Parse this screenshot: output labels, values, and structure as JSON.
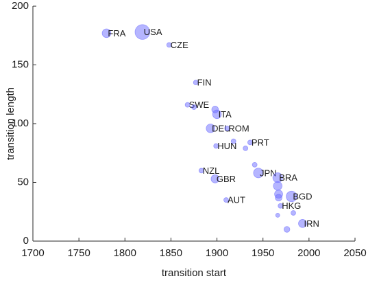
{
  "chart_data": {
    "type": "scatter",
    "xlabel": "transition start",
    "ylabel": "transition length",
    "xlim": [
      1700,
      2050
    ],
    "xticks": [
      1700,
      1750,
      1800,
      1850,
      1900,
      1950,
      2000,
      2050
    ],
    "ylim": [
      0,
      200
    ],
    "yticks": [
      0,
      50,
      100,
      150,
      200
    ],
    "color": "#6b6bff",
    "x": [
      1780,
      1819,
      1848,
      1877,
      1868,
      1875,
      1898,
      1900,
      1893,
      1911,
      1899,
      1936,
      1918,
      1931,
      1883,
      1898,
      1941,
      1945,
      1966,
      1966,
      1967,
      1967,
      1981,
      1969,
      1910,
      1993,
      1966,
      1976,
      1983
    ],
    "values": [
      177,
      178,
      167,
      135,
      116,
      114,
      112,
      108,
      96,
      96,
      81,
      84,
      85,
      79,
      60,
      53,
      65,
      58,
      54,
      47,
      40,
      37,
      38,
      30,
      35,
      15,
      22,
      10,
      24
    ],
    "sizes": [
      3,
      11,
      0.5,
      0.5,
      0.5,
      0.5,
      1.5,
      3,
      3,
      0.5,
      0.5,
      0.5,
      0.5,
      0.5,
      0.5,
      2.5,
      0.5,
      4,
      4,
      3,
      2.5,
      1.5,
      5,
      0.5,
      0.5,
      2.5,
      0.3,
      1,
      0.5
    ],
    "labels": [
      "FRA",
      "USA",
      "CZE",
      "FIN",
      "SWE",
      null,
      null,
      "ITA",
      "DEU",
      "ROM",
      "HUN",
      "PRT",
      null,
      null,
      "NZL",
      "GBR",
      null,
      "JPN",
      "BRA",
      null,
      null,
      null,
      "BGD",
      "HKG",
      "AUT",
      "IRN",
      null,
      null,
      null
    ]
  }
}
